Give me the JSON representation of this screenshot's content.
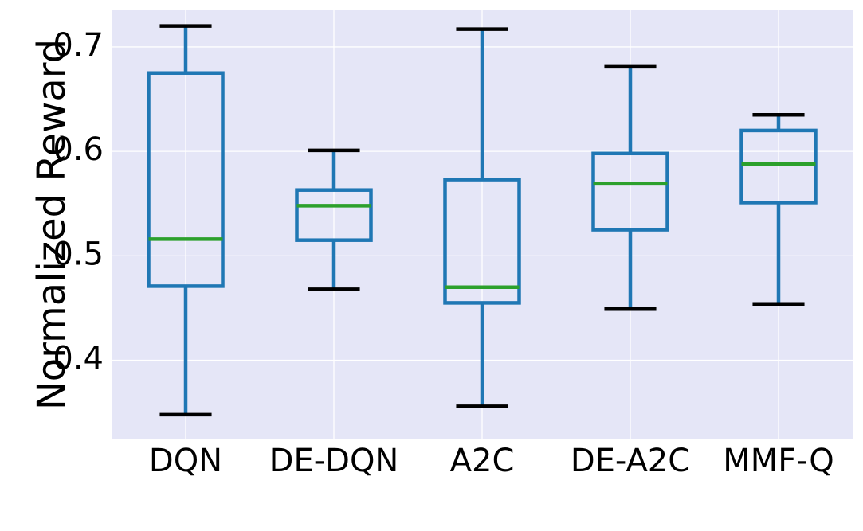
{
  "chart_data": {
    "type": "box",
    "title": "",
    "xlabel": "",
    "ylabel": "Normalized Reward",
    "ylim": [
      0.325,
      0.735
    ],
    "yticks": [
      0.4,
      0.5,
      0.6,
      0.7
    ],
    "ytick_labels": [
      "0.4",
      "0.5",
      "0.6",
      "0.7"
    ],
    "grid": true,
    "categories": [
      "DQN",
      "DE-DQN",
      "A2C",
      "DE-A2C",
      "MMF-Q"
    ],
    "boxes": [
      {
        "label": "DQN",
        "whislo": 0.348,
        "q1": 0.471,
        "median": 0.516,
        "q3": 0.675,
        "whishi": 0.72
      },
      {
        "label": "DE-DQN",
        "whislo": 0.468,
        "q1": 0.515,
        "median": 0.548,
        "q3": 0.563,
        "whishi": 0.601
      },
      {
        "label": "A2C",
        "whislo": 0.356,
        "q1": 0.455,
        "median": 0.47,
        "q3": 0.573,
        "whishi": 0.717
      },
      {
        "label": "DE-A2C",
        "whislo": 0.449,
        "q1": 0.525,
        "median": 0.569,
        "q3": 0.598,
        "whishi": 0.681
      },
      {
        "label": "MMF-Q",
        "whislo": 0.454,
        "q1": 0.551,
        "median": 0.588,
        "q3": 0.62,
        "whishi": 0.635
      }
    ],
    "colors": {
      "background": "#e5e6f7",
      "box": "#1f77b4",
      "median": "#2ca02c",
      "cap": "#000000",
      "grid": "#ffffff"
    }
  }
}
